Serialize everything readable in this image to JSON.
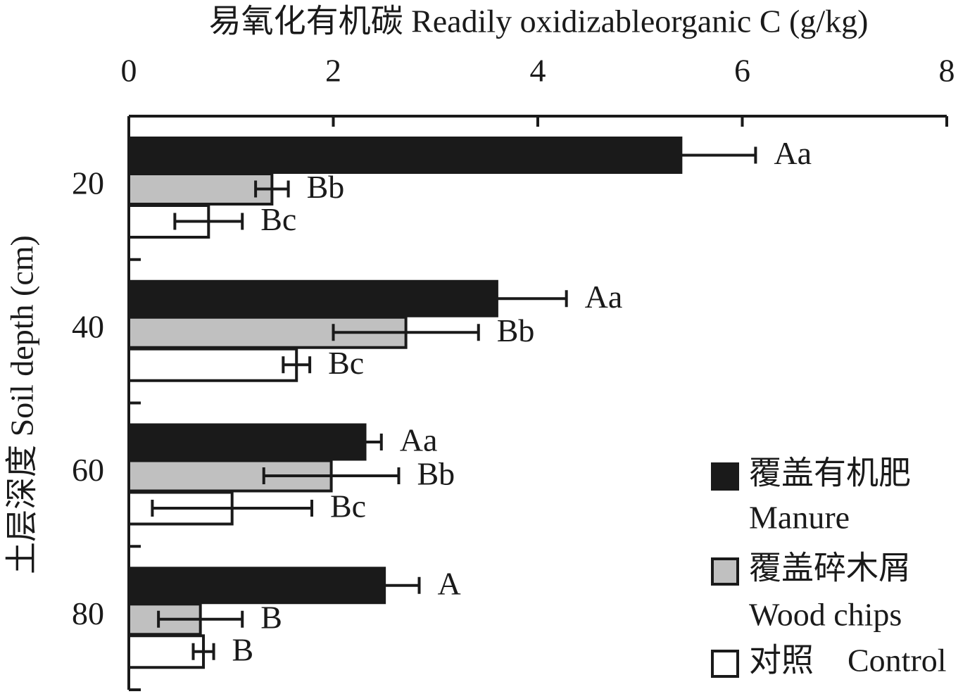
{
  "chart_data": {
    "type": "hbar",
    "title": "易氧化有机碳 Readily oxidizableorganic C (g/kg)",
    "y_label": "土层深度 Soil depth (cm)",
    "categories": [
      "20",
      "40",
      "60",
      "80"
    ],
    "xlim": [
      0,
      8
    ],
    "xticks": [
      0,
      2,
      4,
      6,
      8
    ],
    "series": [
      {
        "name": "Manure",
        "name_cn": "覆盖有机肥",
        "color": "#1a1a1a",
        "values": [
          5.4,
          3.6,
          2.31,
          2.5
        ],
        "errors": [
          0.73,
          0.68,
          0.16,
          0.34
        ],
        "letters": [
          "Aa",
          "Aa",
          "Aa",
          "A"
        ]
      },
      {
        "name": "Wood chips",
        "name_cn": "覆盖碎木屑",
        "color": "#c0c0c0",
        "values": [
          1.4,
          2.71,
          1.98,
          0.7
        ],
        "errors": [
          0.16,
          0.71,
          0.66,
          0.41
        ],
        "letters": [
          "Bb",
          "Bb",
          "Bb",
          "B"
        ]
      },
      {
        "name": "Control",
        "name_cn": "对照",
        "color": "#ffffff",
        "values": [
          0.78,
          1.64,
          1.01,
          0.73
        ],
        "errors": [
          0.33,
          0.13,
          0.78,
          0.1
        ],
        "letters": [
          "Bc",
          "Bc",
          "Bc",
          "B"
        ]
      }
    ]
  }
}
